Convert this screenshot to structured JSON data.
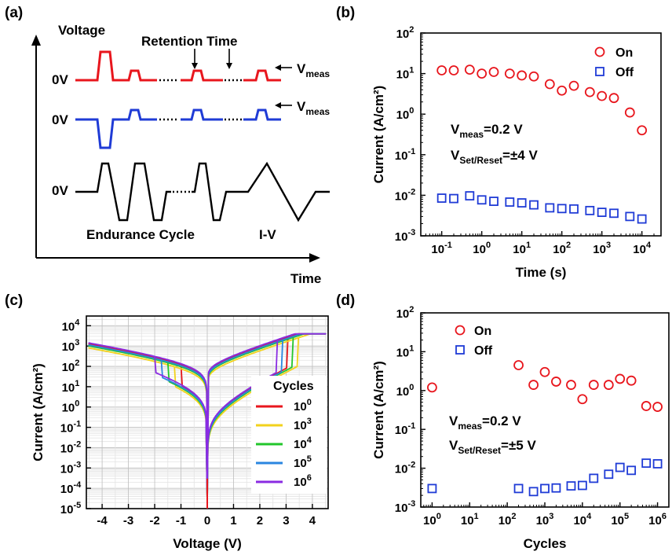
{
  "figure_labels": [
    "(a)",
    "(b)",
    "(c)",
    "(d)"
  ],
  "chart_data": [
    {
      "panel": "(a)",
      "type": "diagram",
      "texts": {
        "y_axis": "Voltage",
        "x_axis": "Time",
        "retention": "Retention Time",
        "zero_v": "0V",
        "vmeas": "V",
        "vmeas_sub": "meas",
        "endurance": "Endurance Cycle",
        "iv": "I-V"
      },
      "colors": {
        "row1": "#e8161d",
        "row2": "#1f3bd6",
        "row3": "#000000"
      }
    },
    {
      "panel": "(b)",
      "type": "scatter",
      "xlabel": "Time (s)",
      "ylabel": "Current (A/cm²)",
      "xscale": "log",
      "yscale": "log",
      "xlim": [
        0.03,
        30000
      ],
      "ylim": [
        0.001,
        100
      ],
      "x_ticks": [
        "10",
        "10",
        "10",
        "10",
        "10",
        "10"
      ],
      "x_tick_exps": [
        "-1",
        "0",
        "1",
        "2",
        "3",
        "4"
      ],
      "y_ticks": [
        "10",
        "10",
        "10",
        "10",
        "10",
        "10"
      ],
      "y_tick_exps": [
        "-3",
        "-2",
        "-1",
        "0",
        "1",
        "2"
      ],
      "legend": [
        "On",
        "Off"
      ],
      "legend_position": "top-right",
      "annotation": {
        "line1_main": "V",
        "line1_sub": "meas",
        "line1_rest": "=0.2 V",
        "line2_main": "V",
        "line2_sub": "Set/Reset",
        "line2_rest": "=±4 V"
      },
      "series": [
        {
          "name": "On",
          "marker": "circle",
          "color": "#e8161d",
          "x": [
            0.1,
            0.2,
            0.5,
            1,
            2,
            5,
            10,
            20,
            50,
            100,
            200,
            500,
            1000,
            2000,
            5000,
            10000
          ],
          "y": [
            12,
            12,
            12.5,
            10,
            11,
            10,
            9,
            8.5,
            5.5,
            3.8,
            5.0,
            3.5,
            2.8,
            2.5,
            1.1,
            0.4
          ]
        },
        {
          "name": "Off",
          "marker": "square",
          "color": "#1f3bd6",
          "x": [
            0.1,
            0.2,
            0.5,
            1,
            2,
            5,
            10,
            20,
            50,
            100,
            200,
            500,
            1000,
            2000,
            5000,
            10000
          ],
          "y": [
            0.0085,
            0.0083,
            0.0097,
            0.0077,
            0.0071,
            0.0068,
            0.0065,
            0.0058,
            0.0049,
            0.0047,
            0.0046,
            0.0042,
            0.0038,
            0.0036,
            0.003,
            0.0026
          ]
        }
      ]
    },
    {
      "panel": "(c)",
      "type": "line",
      "xlabel": "Voltage (V)",
      "ylabel": "Current (A/cm²)",
      "yscale": "log",
      "xlim": [
        -4.6,
        4.6
      ],
      "ylim": [
        1e-05,
        30000
      ],
      "x_ticks": [
        "-4",
        "-3",
        "-2",
        "-1",
        "0",
        "1",
        "2",
        "3",
        "4"
      ],
      "y_ticks": [
        "10",
        "10",
        "10",
        "10",
        "10",
        "10",
        "10",
        "10",
        "10",
        "10"
      ],
      "y_tick_exps": [
        "-5",
        "-4",
        "-3",
        "-2",
        "-1",
        "0",
        "1",
        "2",
        "3",
        "4"
      ],
      "grid": true,
      "legend_title": "Cycles",
      "legend_position": "right",
      "series": [
        {
          "name": "10",
          "exp": "0",
          "color": "#e8161d",
          "vs": 8,
          "ls": 0.1
        },
        {
          "name": "10",
          "exp": "3",
          "color": "#f2d21c",
          "vs": 9,
          "ls": -0.1
        },
        {
          "name": "10",
          "exp": "4",
          "color": "#22c62b",
          "vs": 8.5,
          "ls": 0.0
        },
        {
          "name": "10",
          "exp": "5",
          "color": "#2a86e0",
          "vs": 7.5,
          "ls": 0.05
        },
        {
          "name": "10",
          "exp": "6",
          "color": "#8a2be2",
          "vs": 7,
          "ls": 0.15
        }
      ]
    },
    {
      "panel": "(d)",
      "type": "scatter",
      "xlabel": "Cycles",
      "ylabel": "Current (A/cm²)",
      "xscale": "log",
      "yscale": "log",
      "xlim": [
        0.5,
        2000000
      ],
      "ylim": [
        0.001,
        100
      ],
      "x_ticks": [
        "10",
        "10",
        "10",
        "10",
        "10",
        "10",
        "10"
      ],
      "x_tick_exps": [
        "0",
        "1",
        "2",
        "3",
        "4",
        "5",
        "6"
      ],
      "y_ticks": [
        "10",
        "10",
        "10",
        "10",
        "10",
        "10"
      ],
      "y_tick_exps": [
        "-3",
        "-2",
        "-1",
        "0",
        "1",
        "2"
      ],
      "legend": [
        "On",
        "Off"
      ],
      "legend_position": "top-left",
      "annotation": {
        "line1_main": "V",
        "line1_sub": "meas",
        "line1_rest": "=0.2 V",
        "line2_main": "V",
        "line2_sub": "Set/Reset",
        "line2_rest": "=±5 V"
      },
      "series": [
        {
          "name": "On",
          "marker": "circle",
          "color": "#e8161d",
          "x": [
            1,
            200,
            500,
            1000,
            2000,
            5000,
            10000,
            20000,
            50000,
            100000,
            200000,
            500000,
            1000000
          ],
          "y": [
            1.2,
            4.5,
            1.4,
            3.0,
            1.7,
            1.4,
            0.6,
            1.4,
            1.4,
            2.0,
            1.8,
            0.4,
            0.38
          ]
        },
        {
          "name": "Off",
          "marker": "square",
          "color": "#1f3bd6",
          "x": [
            1,
            200,
            500,
            1000,
            2000,
            5000,
            10000,
            20000,
            50000,
            100000,
            200000,
            500000,
            1000000
          ],
          "y": [
            0.003,
            0.003,
            0.0025,
            0.003,
            0.0031,
            0.0035,
            0.0036,
            0.0055,
            0.007,
            0.0105,
            0.0088,
            0.0135,
            0.013
          ]
        }
      ]
    }
  ]
}
